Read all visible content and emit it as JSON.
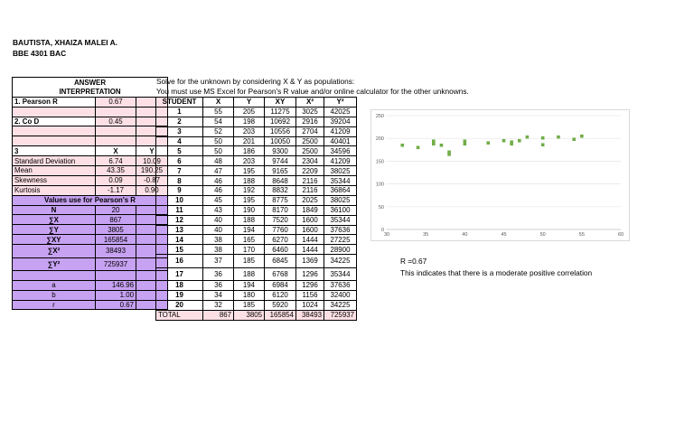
{
  "header": {
    "name": "BAUTISTA, XHAIZA MALEI A.",
    "course": "BBE 4301 BAC"
  },
  "instructions": {
    "line1": "Solve for the unknown by considering X & Y as populations:",
    "line2": "You must use MS Excel for Pearson's R value and/or online calculator for the other unknowns."
  },
  "answer": {
    "title": "ANSWER",
    "subtitle": "INTERPRETATION",
    "pearson_label": "1. Pearson R",
    "pearson_value": "0.67",
    "cod_label": "2. Co D",
    "cod_value": "0.45",
    "stats_label": "3",
    "x_header": "X",
    "y_header": "Y",
    "stats": [
      {
        "label": "Standard Deviation",
        "x": "6.74",
        "y": "10.09"
      },
      {
        "label": "Mean",
        "x": "43.35",
        "y": "190.25"
      },
      {
        "label": "Skewness",
        "x": "0.09",
        "y": "-0.87"
      },
      {
        "label": "Kurtosis",
        "x": "-1.17",
        "y": "0.90"
      }
    ],
    "values_title": "Values use for Pearson's R",
    "sums": [
      {
        "label": "N",
        "value": "20"
      },
      {
        "label": "∑X",
        "value": "867"
      },
      {
        "label": "∑Y",
        "value": "3805"
      },
      {
        "label": "∑XY",
        "value": "165854"
      },
      {
        "label": "∑X²",
        "value": "38493"
      },
      {
        "label": "∑Y²",
        "value": "725937"
      }
    ],
    "coeffs": [
      {
        "label": "a",
        "value": "146.96"
      },
      {
        "label": "b",
        "value": "1.00"
      },
      {
        "label": "r",
        "value": "0.67"
      }
    ]
  },
  "table": {
    "headers": [
      "STUDENT",
      "X",
      "Y",
      "XY",
      "X²",
      "Y²"
    ],
    "rows": [
      [
        "1",
        "55",
        "205",
        "11275",
        "3025",
        "42025"
      ],
      [
        "2",
        "54",
        "198",
        "10692",
        "2916",
        "39204"
      ],
      [
        "3",
        "52",
        "203",
        "10556",
        "2704",
        "41209"
      ],
      [
        "4",
        "50",
        "201",
        "10050",
        "2500",
        "40401"
      ],
      [
        "5",
        "50",
        "186",
        "9300",
        "2500",
        "34596"
      ],
      [
        "6",
        "48",
        "203",
        "9744",
        "2304",
        "41209"
      ],
      [
        "7",
        "47",
        "195",
        "9165",
        "2209",
        "38025"
      ],
      [
        "8",
        "46",
        "188",
        "8648",
        "2116",
        "35344"
      ],
      [
        "9",
        "46",
        "192",
        "8832",
        "2116",
        "36864"
      ],
      [
        "10",
        "45",
        "195",
        "8775",
        "2025",
        "38025"
      ],
      [
        "11",
        "43",
        "190",
        "8170",
        "1849",
        "36100"
      ],
      [
        "12",
        "40",
        "188",
        "7520",
        "1600",
        "35344"
      ],
      [
        "13",
        "40",
        "194",
        "7760",
        "1600",
        "37636"
      ],
      [
        "14",
        "38",
        "165",
        "6270",
        "1444",
        "27225"
      ],
      [
        "15",
        "38",
        "170",
        "6460",
        "1444",
        "28900"
      ],
      [
        "16",
        "37",
        "185",
        "6845",
        "1369",
        "34225"
      ],
      [
        "17",
        "36",
        "188",
        "6768",
        "1296",
        "35344"
      ],
      [
        "18",
        "36",
        "194",
        "6984",
        "1296",
        "37636"
      ],
      [
        "19",
        "34",
        "180",
        "6120",
        "1156",
        "32400"
      ],
      [
        "20",
        "32",
        "185",
        "5920",
        "1024",
        "34225"
      ]
    ],
    "total": [
      "TOTAL",
      "867",
      "3805",
      "165854",
      "38493",
      "725937"
    ]
  },
  "chart_data": {
    "type": "scatter",
    "title": "",
    "xlabel": "",
    "ylabel": "",
    "xlim": [
      30,
      60
    ],
    "ylim": [
      0,
      250
    ],
    "xticks": [
      30,
      35,
      40,
      45,
      50,
      55,
      60
    ],
    "yticks": [
      0,
      50,
      100,
      150,
      200,
      250
    ],
    "grid": true,
    "color": "#70ad47",
    "points": [
      [
        55,
        205
      ],
      [
        54,
        198
      ],
      [
        52,
        203
      ],
      [
        50,
        201
      ],
      [
        50,
        186
      ],
      [
        48,
        203
      ],
      [
        47,
        195
      ],
      [
        46,
        188
      ],
      [
        46,
        192
      ],
      [
        45,
        195
      ],
      [
        43,
        190
      ],
      [
        40,
        188
      ],
      [
        40,
        194
      ],
      [
        38,
        165
      ],
      [
        38,
        170
      ],
      [
        37,
        185
      ],
      [
        36,
        188
      ],
      [
        36,
        194
      ],
      [
        34,
        180
      ],
      [
        32,
        185
      ]
    ]
  },
  "result": {
    "r_text": "R =0.67",
    "interpretation": "This indicates that there is a moderate positive correlation"
  }
}
